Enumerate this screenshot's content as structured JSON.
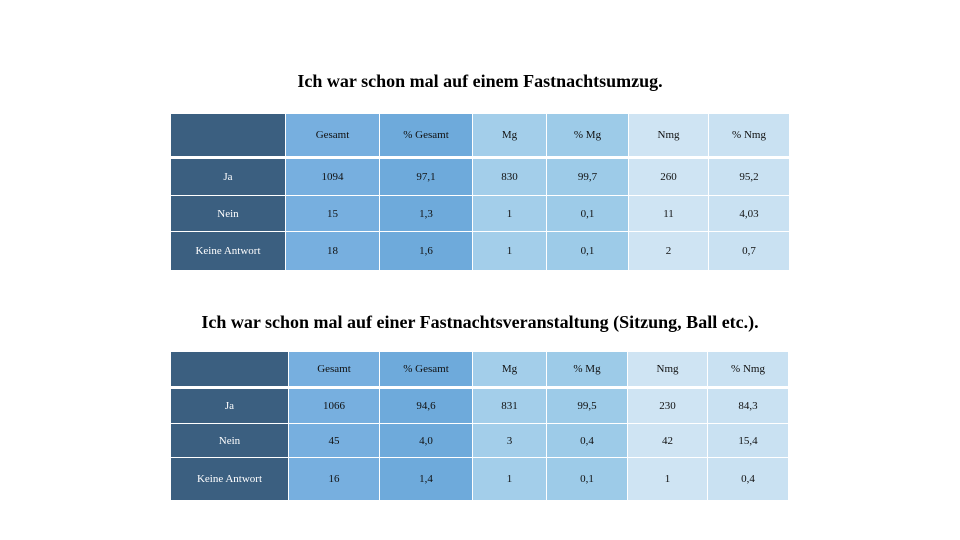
{
  "tables": [
    {
      "title": "Ich war schon mal auf einem Fastnachtsumzug.",
      "headers": [
        "",
        "Gesamt",
        "% Gesamt",
        "Mg",
        "% Mg",
        "Nmg",
        "% Nmg"
      ],
      "rows": [
        [
          "Ja",
          "1094",
          "97,1",
          "830",
          "99,7",
          "260",
          "95,2"
        ],
        [
          "Nein",
          "15",
          "1,3",
          "1",
          "0,1",
          "11",
          "4,03"
        ],
        [
          "Keine Antwort",
          "18",
          "1,6",
          "1",
          "0,1",
          "2",
          "0,7"
        ]
      ]
    },
    {
      "title": "Ich war schon mal auf einer Fastnachtsveranstaltung (Sitzung, Ball etc.).",
      "headers": [
        "",
        "Gesamt",
        "% Gesamt",
        "Mg",
        "% Mg",
        "Nmg",
        "% Nmg"
      ],
      "rows": [
        [
          "Ja",
          "1066",
          "94,6",
          "831",
          "99,5",
          "230",
          "84,3"
        ],
        [
          "Nein",
          "45",
          "4,0",
          "3",
          "0,4",
          "42",
          "15,4"
        ],
        [
          "Keine Antwort",
          "16",
          "1,4",
          "1",
          "0,1",
          "1",
          "0,4"
        ]
      ]
    }
  ],
  "colors": {
    "label": "#3b5f80",
    "gesamt": "#6eaadb",
    "mg": "#9dcbe8",
    "nmg": "#c9e1f2"
  }
}
